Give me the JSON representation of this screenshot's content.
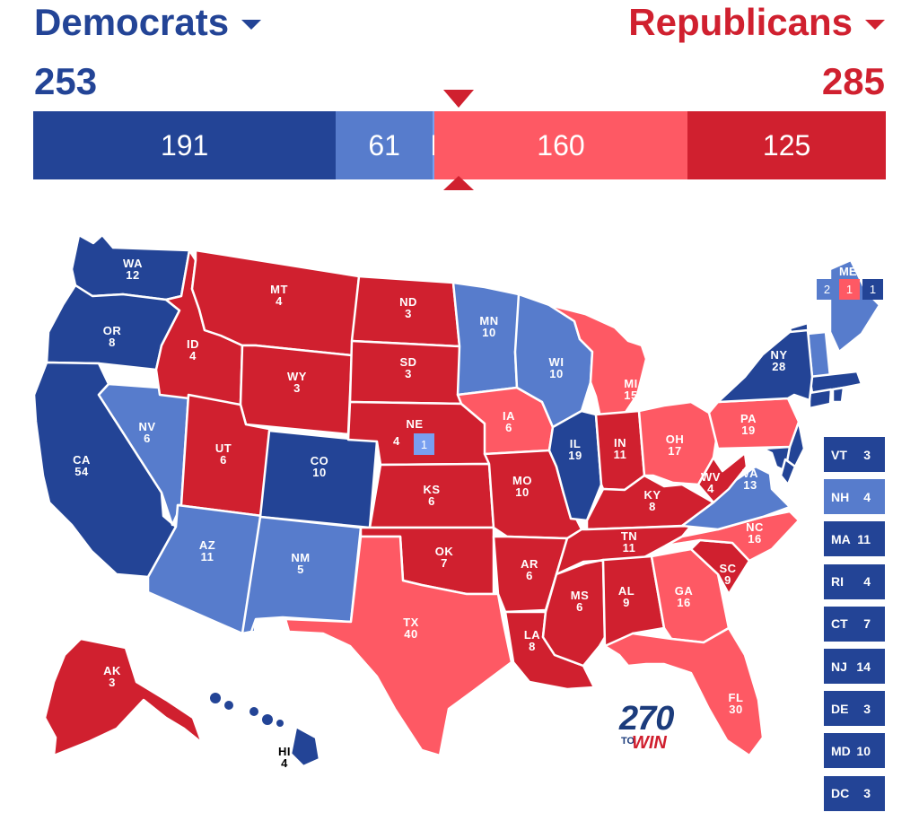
{
  "header": {
    "dem_label": "Democrats",
    "rep_label": "Republicans",
    "dem_total": "253",
    "rep_total": "285"
  },
  "colors": {
    "safe_dem": "#234496",
    "likely_dem": "#577ccc",
    "lean_dem": "#799ff0",
    "lean_rep": "#fe5964",
    "safe_rep": "#d0202f"
  },
  "tally_bar": [
    {
      "label": "191",
      "votes": 191,
      "rating": "safe_dem"
    },
    {
      "label": "61",
      "votes": 61,
      "rating": "likely_dem"
    },
    {
      "label": "1",
      "votes": 1,
      "rating": "lean_dem"
    },
    {
      "label": "160",
      "votes": 160,
      "rating": "lean_rep"
    },
    {
      "label": "125",
      "votes": 125,
      "rating": "safe_rep"
    }
  ],
  "states": [
    {
      "abbr": "WA",
      "ev": "12",
      "rating": "safe_dem"
    },
    {
      "abbr": "OR",
      "ev": "8",
      "rating": "safe_dem"
    },
    {
      "abbr": "CA",
      "ev": "54",
      "rating": "safe_dem"
    },
    {
      "abbr": "NV",
      "ev": "6",
      "rating": "likely_dem"
    },
    {
      "abbr": "ID",
      "ev": "4",
      "rating": "safe_rep"
    },
    {
      "abbr": "MT",
      "ev": "4",
      "rating": "safe_rep"
    },
    {
      "abbr": "WY",
      "ev": "3",
      "rating": "safe_rep"
    },
    {
      "abbr": "UT",
      "ev": "6",
      "rating": "safe_rep"
    },
    {
      "abbr": "AZ",
      "ev": "11",
      "rating": "likely_dem"
    },
    {
      "abbr": "CO",
      "ev": "10",
      "rating": "safe_dem"
    },
    {
      "abbr": "NM",
      "ev": "5",
      "rating": "likely_dem"
    },
    {
      "abbr": "ND",
      "ev": "3",
      "rating": "safe_rep"
    },
    {
      "abbr": "SD",
      "ev": "3",
      "rating": "safe_rep"
    },
    {
      "abbr": "NE",
      "ev": "4",
      "rating": "safe_rep"
    },
    {
      "abbr": "KS",
      "ev": "6",
      "rating": "safe_rep"
    },
    {
      "abbr": "OK",
      "ev": "7",
      "rating": "safe_rep"
    },
    {
      "abbr": "TX",
      "ev": "40",
      "rating": "lean_rep"
    },
    {
      "abbr": "MN",
      "ev": "10",
      "rating": "likely_dem"
    },
    {
      "abbr": "IA",
      "ev": "6",
      "rating": "lean_rep"
    },
    {
      "abbr": "MO",
      "ev": "10",
      "rating": "safe_rep"
    },
    {
      "abbr": "AR",
      "ev": "6",
      "rating": "safe_rep"
    },
    {
      "abbr": "LA",
      "ev": "8",
      "rating": "safe_rep"
    },
    {
      "abbr": "WI",
      "ev": "10",
      "rating": "likely_dem"
    },
    {
      "abbr": "IL",
      "ev": "19",
      "rating": "safe_dem"
    },
    {
      "abbr": "MI",
      "ev": "15",
      "rating": "lean_rep"
    },
    {
      "abbr": "IN",
      "ev": "11",
      "rating": "safe_rep"
    },
    {
      "abbr": "OH",
      "ev": "17",
      "rating": "lean_rep"
    },
    {
      "abbr": "KY",
      "ev": "8",
      "rating": "safe_rep"
    },
    {
      "abbr": "TN",
      "ev": "11",
      "rating": "safe_rep"
    },
    {
      "abbr": "MS",
      "ev": "6",
      "rating": "safe_rep"
    },
    {
      "abbr": "AL",
      "ev": "9",
      "rating": "safe_rep"
    },
    {
      "abbr": "GA",
      "ev": "16",
      "rating": "lean_rep"
    },
    {
      "abbr": "FL",
      "ev": "30",
      "rating": "lean_rep"
    },
    {
      "abbr": "SC",
      "ev": "9",
      "rating": "safe_rep"
    },
    {
      "abbr": "NC",
      "ev": "16",
      "rating": "lean_rep"
    },
    {
      "abbr": "VA",
      "ev": "13",
      "rating": "likely_dem"
    },
    {
      "abbr": "WV",
      "ev": "4",
      "rating": "safe_rep"
    },
    {
      "abbr": "PA",
      "ev": "19",
      "rating": "lean_rep"
    },
    {
      "abbr": "NY",
      "ev": "28",
      "rating": "safe_dem"
    },
    {
      "abbr": "ME",
      "ev": "",
      "rating": "likely_dem"
    },
    {
      "abbr": "AK",
      "ev": "3",
      "rating": "safe_rep"
    },
    {
      "abbr": "HI",
      "ev": "4",
      "rating": "safe_dem"
    }
  ],
  "maine_districts": [
    {
      "label": "2",
      "rating": "likely_dem"
    },
    {
      "label": "1",
      "rating": "lean_rep"
    },
    {
      "label": "1",
      "rating": "safe_dem"
    }
  ],
  "nebraska_district": {
    "label": "1",
    "rating": "lean_dem"
  },
  "small_states": [
    {
      "abbr": "VT",
      "ev": "3",
      "rating": "safe_dem"
    },
    {
      "abbr": "NH",
      "ev": "4",
      "rating": "likely_dem"
    },
    {
      "abbr": "MA",
      "ev": "11",
      "rating": "safe_dem"
    },
    {
      "abbr": "RI",
      "ev": "4",
      "rating": "safe_dem"
    },
    {
      "abbr": "CT",
      "ev": "7",
      "rating": "safe_dem"
    },
    {
      "abbr": "NJ",
      "ev": "14",
      "rating": "safe_dem"
    },
    {
      "abbr": "DE",
      "ev": "3",
      "rating": "safe_dem"
    },
    {
      "abbr": "MD",
      "ev": "10",
      "rating": "safe_dem"
    },
    {
      "abbr": "DC",
      "ev": "3",
      "rating": "safe_dem"
    }
  ],
  "logo": {
    "number": "270",
    "to": "TO",
    "win": "WIN"
  }
}
